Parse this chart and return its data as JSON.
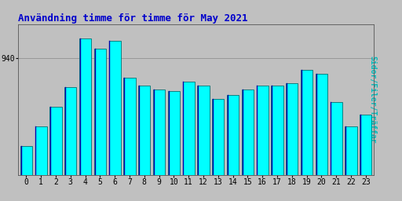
{
  "title": "Användning timme för timme för May 2021",
  "ylabel": "Sidor/Filer/Träffar",
  "categories": [
    0,
    1,
    2,
    3,
    4,
    5,
    6,
    7,
    8,
    9,
    10,
    11,
    12,
    13,
    14,
    15,
    16,
    17,
    18,
    19,
    20,
    21,
    22,
    23
  ],
  "values": [
    850,
    870,
    890,
    910,
    960,
    950,
    958,
    920,
    912,
    908,
    906,
    916,
    912,
    898,
    902,
    908,
    912,
    912,
    914,
    928,
    924,
    895,
    870,
    882
  ],
  "bar_face_color": "#00FFFF",
  "bar_edge_color": "#007070",
  "bar_left_highlight": "#0000AA",
  "background_color": "#C0C0C0",
  "title_color": "#0000CC",
  "ylabel_color": "#00BBBB",
  "tick_color": "#000000",
  "ytick_val": 940,
  "ymin": 820,
  "ymax": 975,
  "title_fontsize": 9,
  "ylabel_fontsize": 7,
  "tick_fontsize": 7,
  "figure_bg": "#C0C0C0"
}
